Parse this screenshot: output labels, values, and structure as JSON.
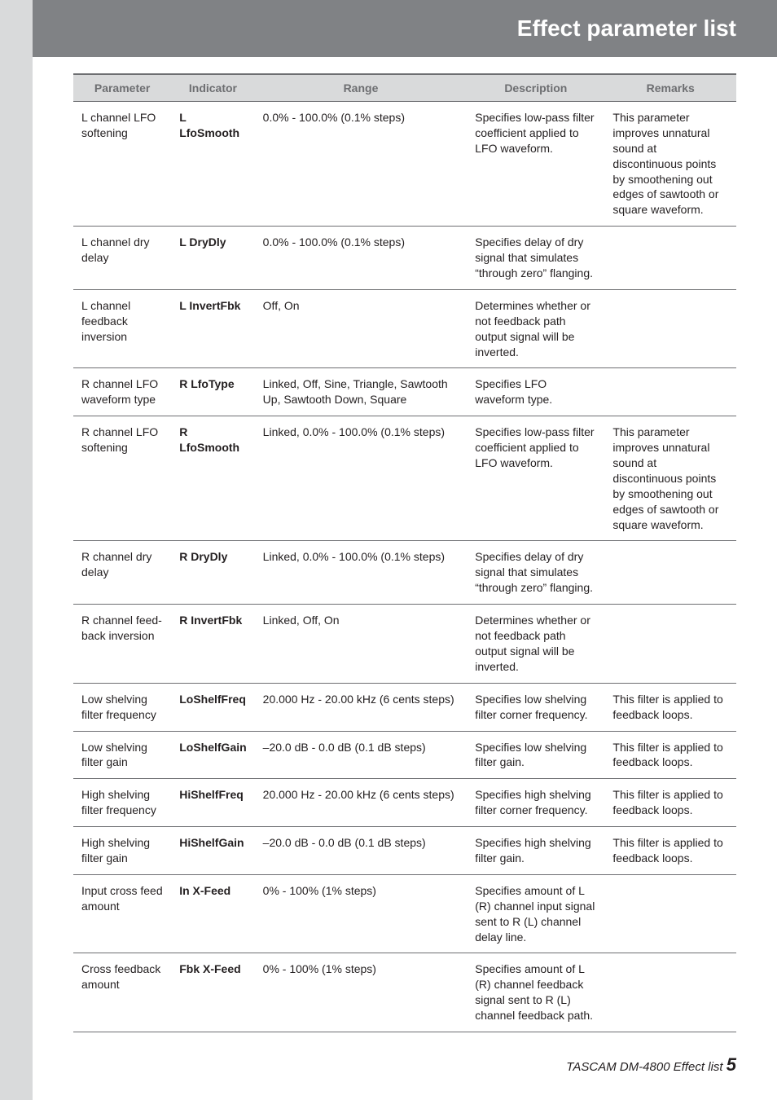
{
  "header": {
    "title": "Effect parameter list"
  },
  "table": {
    "columns": [
      "Parameter",
      "Indicator",
      "Range",
      "Description",
      "Remarks"
    ],
    "rows": [
      {
        "param": "L channel LFO softening",
        "ind": "L LfoSmooth",
        "range": "0.0% - 100.0% (0.1% steps)",
        "desc": "Specifies low-pass filter coefficient applied to LFO waveform.",
        "rem": "This parameter improves unnatural sound at discontinuous points by smoothening out edges of sawtooth or square waveform."
      },
      {
        "param": "L channel dry delay",
        "ind": "L DryDly",
        "range": "0.0% - 100.0% (0.1% steps)",
        "desc": "Specifies delay of dry signal that simulates “through zero” flanging.",
        "rem": ""
      },
      {
        "param": "L channel feedback inversion",
        "ind": "L InvertFbk",
        "range": "Off, On",
        "desc": "Determines whether or not feedback path output signal will be inverted.",
        "rem": ""
      },
      {
        "param": "R channel LFO waveform type",
        "ind": "R LfoType",
        "range": "Linked, Off, Sine, Triangle, Sawtooth Up, Sawtooth Down, Square",
        "desc": "Specifies LFO waveform type.",
        "rem": ""
      },
      {
        "param": "R channel LFO softening",
        "ind": "R LfoSmooth",
        "range": "Linked, 0.0% - 100.0% (0.1% steps)",
        "desc": "Specifies low-pass filter coefficient applied to LFO waveform.",
        "rem": "This parameter improves unnatural sound at discontinuous points by smoothening out edges of sawtooth or square waveform."
      },
      {
        "param": "R channel dry delay",
        "ind": "R DryDly",
        "range": "Linked, 0.0% - 100.0% (0.1% steps)",
        "desc": "Specifies delay of dry signal that simulates “through zero” flanging.",
        "rem": ""
      },
      {
        "param": "R channel feed-back inversion",
        "ind": "R InvertFbk",
        "range": "Linked, Off, On",
        "desc": "Determines whether or not feedback path output signal will be inverted.",
        "rem": ""
      },
      {
        "param": "Low shelving filter frequency",
        "ind": "LoShelfFreq",
        "range": "20.000 Hz - 20.00 kHz (6 cents steps)",
        "desc": "Specifies low shelving filter corner frequency.",
        "rem": "This filter is applied to feedback loops."
      },
      {
        "param": "Low shelving filter gain",
        "ind": "LoShelfGain",
        "range": "–20.0 dB - 0.0 dB (0.1 dB steps)",
        "desc": "Specifies low shelving filter gain.",
        "rem": "This filter is applied to feedback loops."
      },
      {
        "param": "High shelving filter frequency",
        "ind": "HiShelfFreq",
        "range": "20.000 Hz - 20.00 kHz (6 cents steps)",
        "desc": "Specifies high shelving filter corner frequency.",
        "rem": "This filter is applied to feedback loops."
      },
      {
        "param": "High shelving filter gain",
        "ind": "HiShelfGain",
        "range": "–20.0 dB - 0.0 dB (0.1 dB steps)",
        "desc": "Specifies high shelving filter gain.",
        "rem": "This filter is applied to feedback loops."
      },
      {
        "param": "Input cross feed amount",
        "ind": "In X-Feed",
        "range": "0% - 100% (1% steps)",
        "desc": "Specifies amount of L (R) channel input signal sent to R (L) channel delay line.",
        "rem": ""
      },
      {
        "param": "Cross feedback amount",
        "ind": "Fbk X-Feed",
        "range": "0% - 100% (1% steps)",
        "desc": "Specifies amount of L (R) channel feedback signal sent to R (L) channel feedback path.",
        "rem": ""
      }
    ]
  },
  "footer": {
    "text": "TASCAM DM-4800 Effect list",
    "page": "5"
  },
  "style": {
    "header_bg": "#808285",
    "header_text": "#ffffff",
    "thead_bg": "#d9dadb",
    "thead_text": "#6d6e71",
    "border": "#6d6e71",
    "body_text": "#231f20",
    "stripe_bg": "#d9dadb",
    "font_size_body": 14,
    "font_size_header": 28
  }
}
